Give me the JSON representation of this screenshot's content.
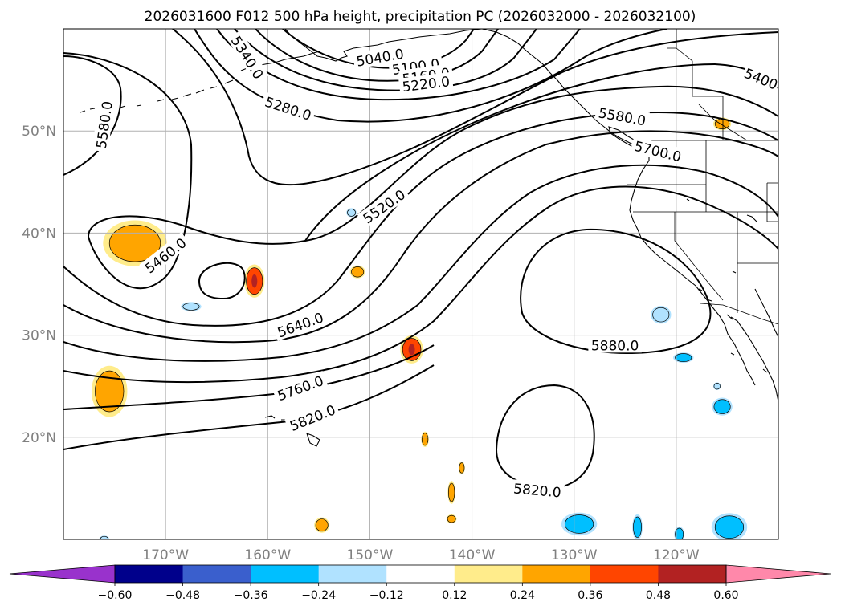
{
  "chart_data": {
    "type": "contour-map",
    "title": "2026031600 F012 500 hPa height, precipitation PC (2026032000 - 2026032100)",
    "projection": "lat-lon (PlateCarree)",
    "lon_range": [
      -180,
      -110
    ],
    "lat_range": [
      10,
      60
    ],
    "x_ticks": [
      {
        "lon": -170,
        "label": "170°W"
      },
      {
        "lon": -160,
        "label": "160°W"
      },
      {
        "lon": -150,
        "label": "150°W"
      },
      {
        "lon": -140,
        "label": "140°W"
      },
      {
        "lon": -130,
        "label": "130°W"
      },
      {
        "lon": -120,
        "label": "120°W"
      }
    ],
    "y_ticks": [
      {
        "lat": 20,
        "label": "20°N"
      },
      {
        "lat": 30,
        "label": "30°N"
      },
      {
        "lat": 40,
        "label": "40°N"
      },
      {
        "lat": 50,
        "label": "50°N"
      }
    ],
    "grid": true,
    "height_contours": {
      "variable": "500 hPa geopotential height",
      "units": "m",
      "interval": 60,
      "labels": [
        {
          "text": "5040.0",
          "lon": -149.0,
          "lat": 57.2,
          "angle": -10
        },
        {
          "text": "5100.0",
          "lon": -145.5,
          "lat": 56.3,
          "angle": -8
        },
        {
          "text": "5160.0",
          "lon": -144.5,
          "lat": 55.4,
          "angle": -8
        },
        {
          "text": "5220.0",
          "lon": -144.5,
          "lat": 54.6,
          "angle": -7
        },
        {
          "text": "5280.0",
          "lon": -158.0,
          "lat": 52.2,
          "angle": 18
        },
        {
          "text": "5340.0",
          "lon": -162.0,
          "lat": 57.2,
          "angle": 58
        },
        {
          "text": "5400",
          "lon": -111.7,
          "lat": 55.1,
          "angle": 22
        },
        {
          "text": "5460.0",
          "lon": -170.0,
          "lat": 37.8,
          "angle": -38
        },
        {
          "text": "5520.0",
          "lon": -148.6,
          "lat": 42.6,
          "angle": -35
        },
        {
          "text": "5580.0",
          "lon": -176.0,
          "lat": 50.6,
          "angle": -82
        },
        {
          "text": "5580.0",
          "lon": -125.3,
          "lat": 51.4,
          "angle": 10
        },
        {
          "text": "5640.0",
          "lon": -156.8,
          "lat": 31.0,
          "angle": -20
        },
        {
          "text": "5700.0",
          "lon": -121.8,
          "lat": 48.0,
          "angle": 14
        },
        {
          "text": "5760.0",
          "lon": -156.8,
          "lat": 24.8,
          "angle": -20
        },
        {
          "text": "5820.0",
          "lon": -155.6,
          "lat": 21.9,
          "angle": -22
        },
        {
          "text": "5820.0",
          "lon": -133.6,
          "lat": 14.8,
          "angle": 5
        },
        {
          "text": "5880.0",
          "lon": -126.0,
          "lat": 29.0,
          "angle": 0
        }
      ]
    },
    "precipitation_pc": {
      "colorbar": {
        "orientation": "horizontal",
        "extend": "both",
        "ticks": [
          "−0.60",
          "−0.48",
          "−0.36",
          "−0.24",
          "−0.12",
          "0.12",
          "0.24",
          "0.36",
          "0.48",
          "0.60"
        ],
        "bounds": [
          -0.6,
          -0.48,
          -0.36,
          -0.24,
          -0.12,
          0.12,
          0.24,
          0.36,
          0.48,
          0.6
        ],
        "under_color": "#9932cc",
        "over_color": "#ff88aa",
        "colors": [
          "#00008b",
          "#3a5fcd",
          "#00bfff",
          "#b0e2ff",
          "#ffffff",
          "#ffec8b",
          "#ffa500",
          "#ff4500",
          "#b22222"
        ]
      },
      "blobs": [
        {
          "lon": -175.5,
          "lat": 24.5,
          "rx": 1.4,
          "ry": 2.0,
          "value": 0.3
        },
        {
          "lon": -173.0,
          "lat": 39.0,
          "rx": 2.5,
          "ry": 1.8,
          "value": 0.3
        },
        {
          "lon": -161.3,
          "lat": 35.3,
          "rx": 0.8,
          "ry": 1.3,
          "value": 0.4
        },
        {
          "lon": -145.9,
          "lat": 28.6,
          "rx": 0.9,
          "ry": 1.1,
          "value": 0.38
        },
        {
          "lon": -151.2,
          "lat": 36.2,
          "rx": 0.6,
          "ry": 0.5,
          "value": 0.28
        },
        {
          "lon": -144.6,
          "lat": 19.8,
          "rx": 0.3,
          "ry": 0.6,
          "value": 0.27
        },
        {
          "lon": -142.0,
          "lat": 14.6,
          "rx": 0.3,
          "ry": 0.9,
          "value": 0.27
        },
        {
          "lon": -141.0,
          "lat": 17.0,
          "rx": 0.25,
          "ry": 0.5,
          "value": 0.27
        },
        {
          "lon": -142.0,
          "lat": 12.0,
          "rx": 0.4,
          "ry": 0.35,
          "value": 0.27
        },
        {
          "lon": -154.7,
          "lat": 11.4,
          "rx": 0.6,
          "ry": 0.6,
          "value": 0.35
        },
        {
          "lon": -115.5,
          "lat": 50.7,
          "rx": 0.7,
          "ry": 0.5,
          "value": 0.3
        },
        {
          "lon": -167.5,
          "lat": 32.8,
          "rx": 0.8,
          "ry": 0.35,
          "value": -0.22
        },
        {
          "lon": -121.5,
          "lat": 32.0,
          "rx": 0.8,
          "ry": 0.7,
          "value": -0.22
        },
        {
          "lon": -119.3,
          "lat": 27.8,
          "rx": 0.8,
          "ry": 0.4,
          "value": -0.26
        },
        {
          "lon": -115.5,
          "lat": 23.0,
          "rx": 0.8,
          "ry": 0.7,
          "value": -0.3
        },
        {
          "lon": -129.5,
          "lat": 11.5,
          "rx": 1.4,
          "ry": 0.9,
          "value": -0.3
        },
        {
          "lon": -114.8,
          "lat": 11.2,
          "rx": 1.4,
          "ry": 1.1,
          "value": -0.3
        },
        {
          "lon": -123.8,
          "lat": 11.2,
          "rx": 0.4,
          "ry": 1.0,
          "value": -0.3
        },
        {
          "lon": -119.7,
          "lat": 10.5,
          "rx": 0.4,
          "ry": 0.6,
          "value": -0.28
        },
        {
          "lon": -151.8,
          "lat": 42.0,
          "rx": 0.4,
          "ry": 0.35,
          "value": -0.2
        },
        {
          "lon": -116.0,
          "lat": 25.0,
          "rx": 0.3,
          "ry": 0.3,
          "value": -0.2
        },
        {
          "lon": -176.0,
          "lat": 10.0,
          "rx": 0.4,
          "ry": 0.3,
          "value": -0.18
        }
      ]
    }
  }
}
